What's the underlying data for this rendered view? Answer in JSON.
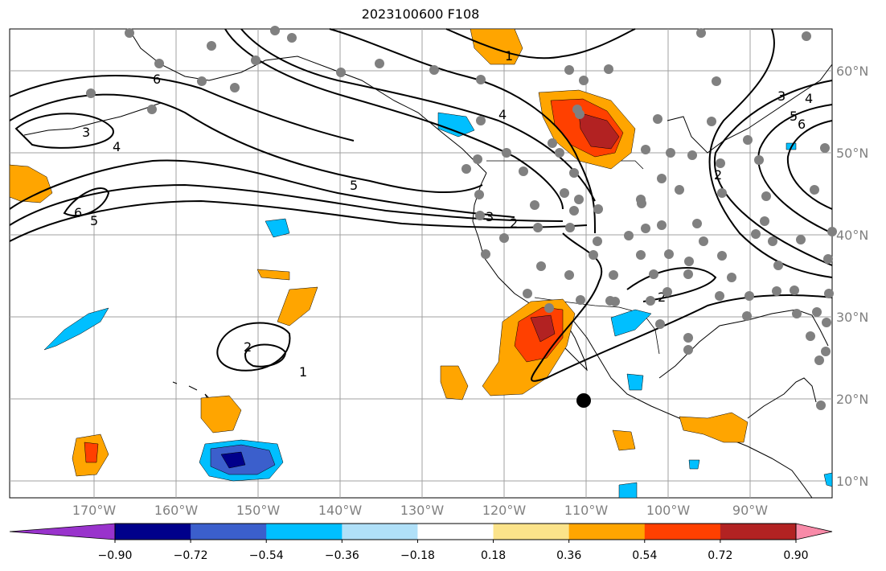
{
  "title": "2023100600 F108",
  "lon_labels": [
    "170°W",
    "160°W",
    "150°W",
    "140°W",
    "130°W",
    "120°W",
    "110°W",
    "100°W",
    "90°W"
  ],
  "lat_labels": [
    "60°N",
    "50°N",
    "40°N",
    "30°N",
    "20°N",
    "10°N"
  ],
  "contour_labels": [
    "1",
    "2",
    "3",
    "4",
    "5",
    "6"
  ],
  "colorbar": {
    "ticks": [
      "−0.90",
      "−0.72",
      "−0.54",
      "−0.36",
      "−0.18",
      "0.18",
      "0.36",
      "0.54",
      "0.72",
      "0.90"
    ],
    "colors": [
      "#9933cc",
      "#00008b",
      "#3b5fcc",
      "#00bfff",
      "#b0e0f8",
      "#ffffff",
      "#fbe38a",
      "#ffa500",
      "#ff4000",
      "#b22222",
      "#f88aa8"
    ]
  },
  "colors": {
    "grid": "#a0a0a0",
    "land": "#000000",
    "station": "#808080",
    "storm_marker": "#000000"
  },
  "stations_visible": true,
  "storm_marker": {
    "lon": -110,
    "lat": 20
  }
}
